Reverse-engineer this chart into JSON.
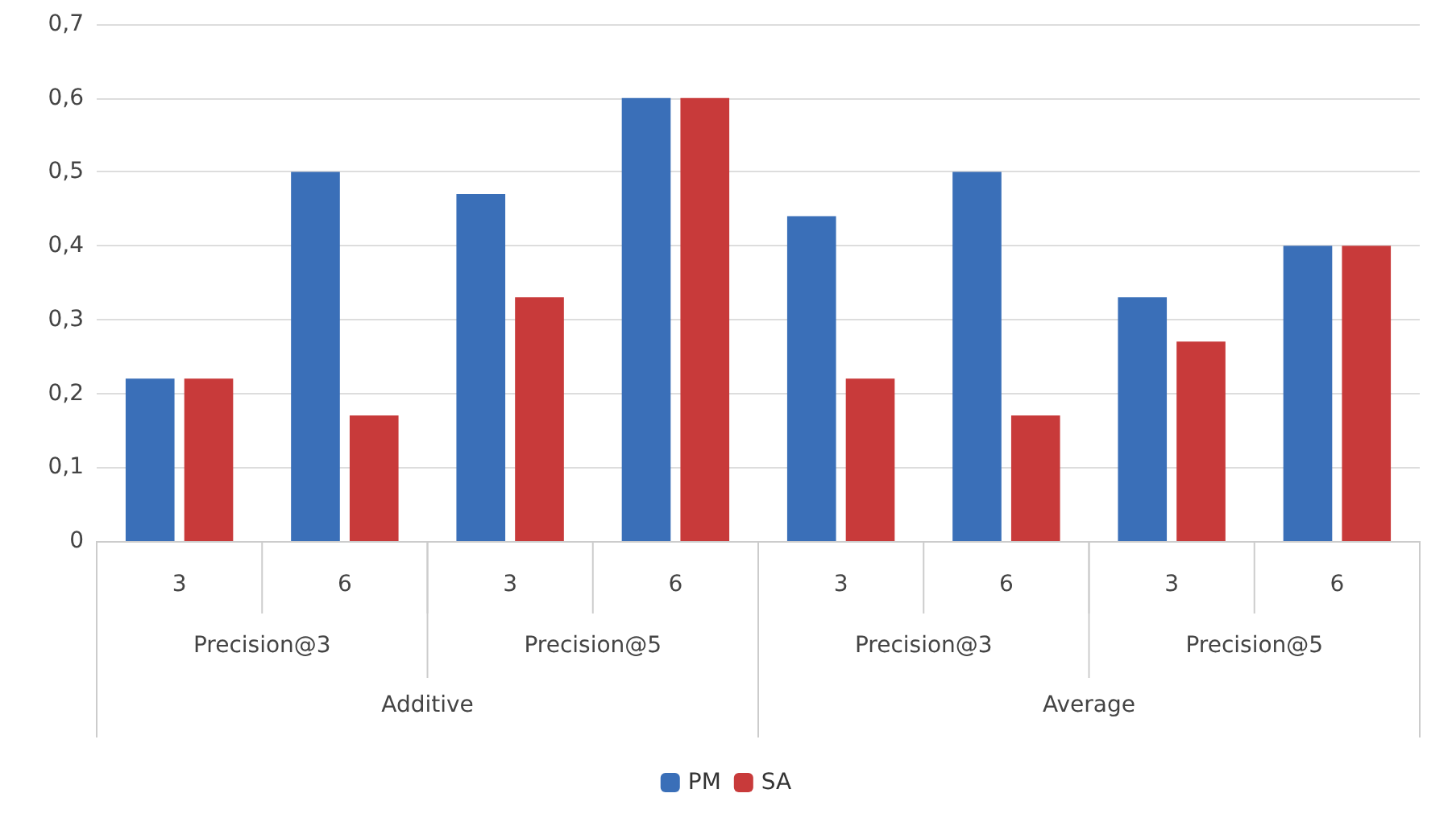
{
  "chart_data": {
    "type": "bar",
    "categories": [
      "3",
      "6",
      "3",
      "6",
      "3",
      "6",
      "3",
      "6"
    ],
    "series": [
      {
        "name": "PM",
        "color": "#3a6fb8",
        "values": [
          0.22,
          0.5,
          0.47,
          0.6,
          0.44,
          0.5,
          0.33,
          0.4
        ]
      },
      {
        "name": "SA",
        "color": "#c83a3a",
        "values": [
          0.22,
          0.17,
          0.33,
          0.6,
          0.22,
          0.17,
          0.27,
          0.4
        ]
      }
    ],
    "ylim": [
      0,
      0.7
    ],
    "yticks": [
      {
        "value": 0,
        "label": "0"
      },
      {
        "value": 0.1,
        "label": "0,1"
      },
      {
        "value": 0.2,
        "label": "0,2"
      },
      {
        "value": 0.3,
        "label": "0,3"
      },
      {
        "value": 0.4,
        "label": "0,4"
      },
      {
        "value": 0.5,
        "label": "0,5"
      },
      {
        "value": 0.6,
        "label": "0,6"
      },
      {
        "value": 0.7,
        "label": "0,7"
      }
    ],
    "annotations": [
      "Precision@3",
      "Precision@5",
      "Precision@3",
      "Precision@5",
      "Additive",
      "Average"
    ],
    "grid": "y",
    "legend": "bottom"
  }
}
